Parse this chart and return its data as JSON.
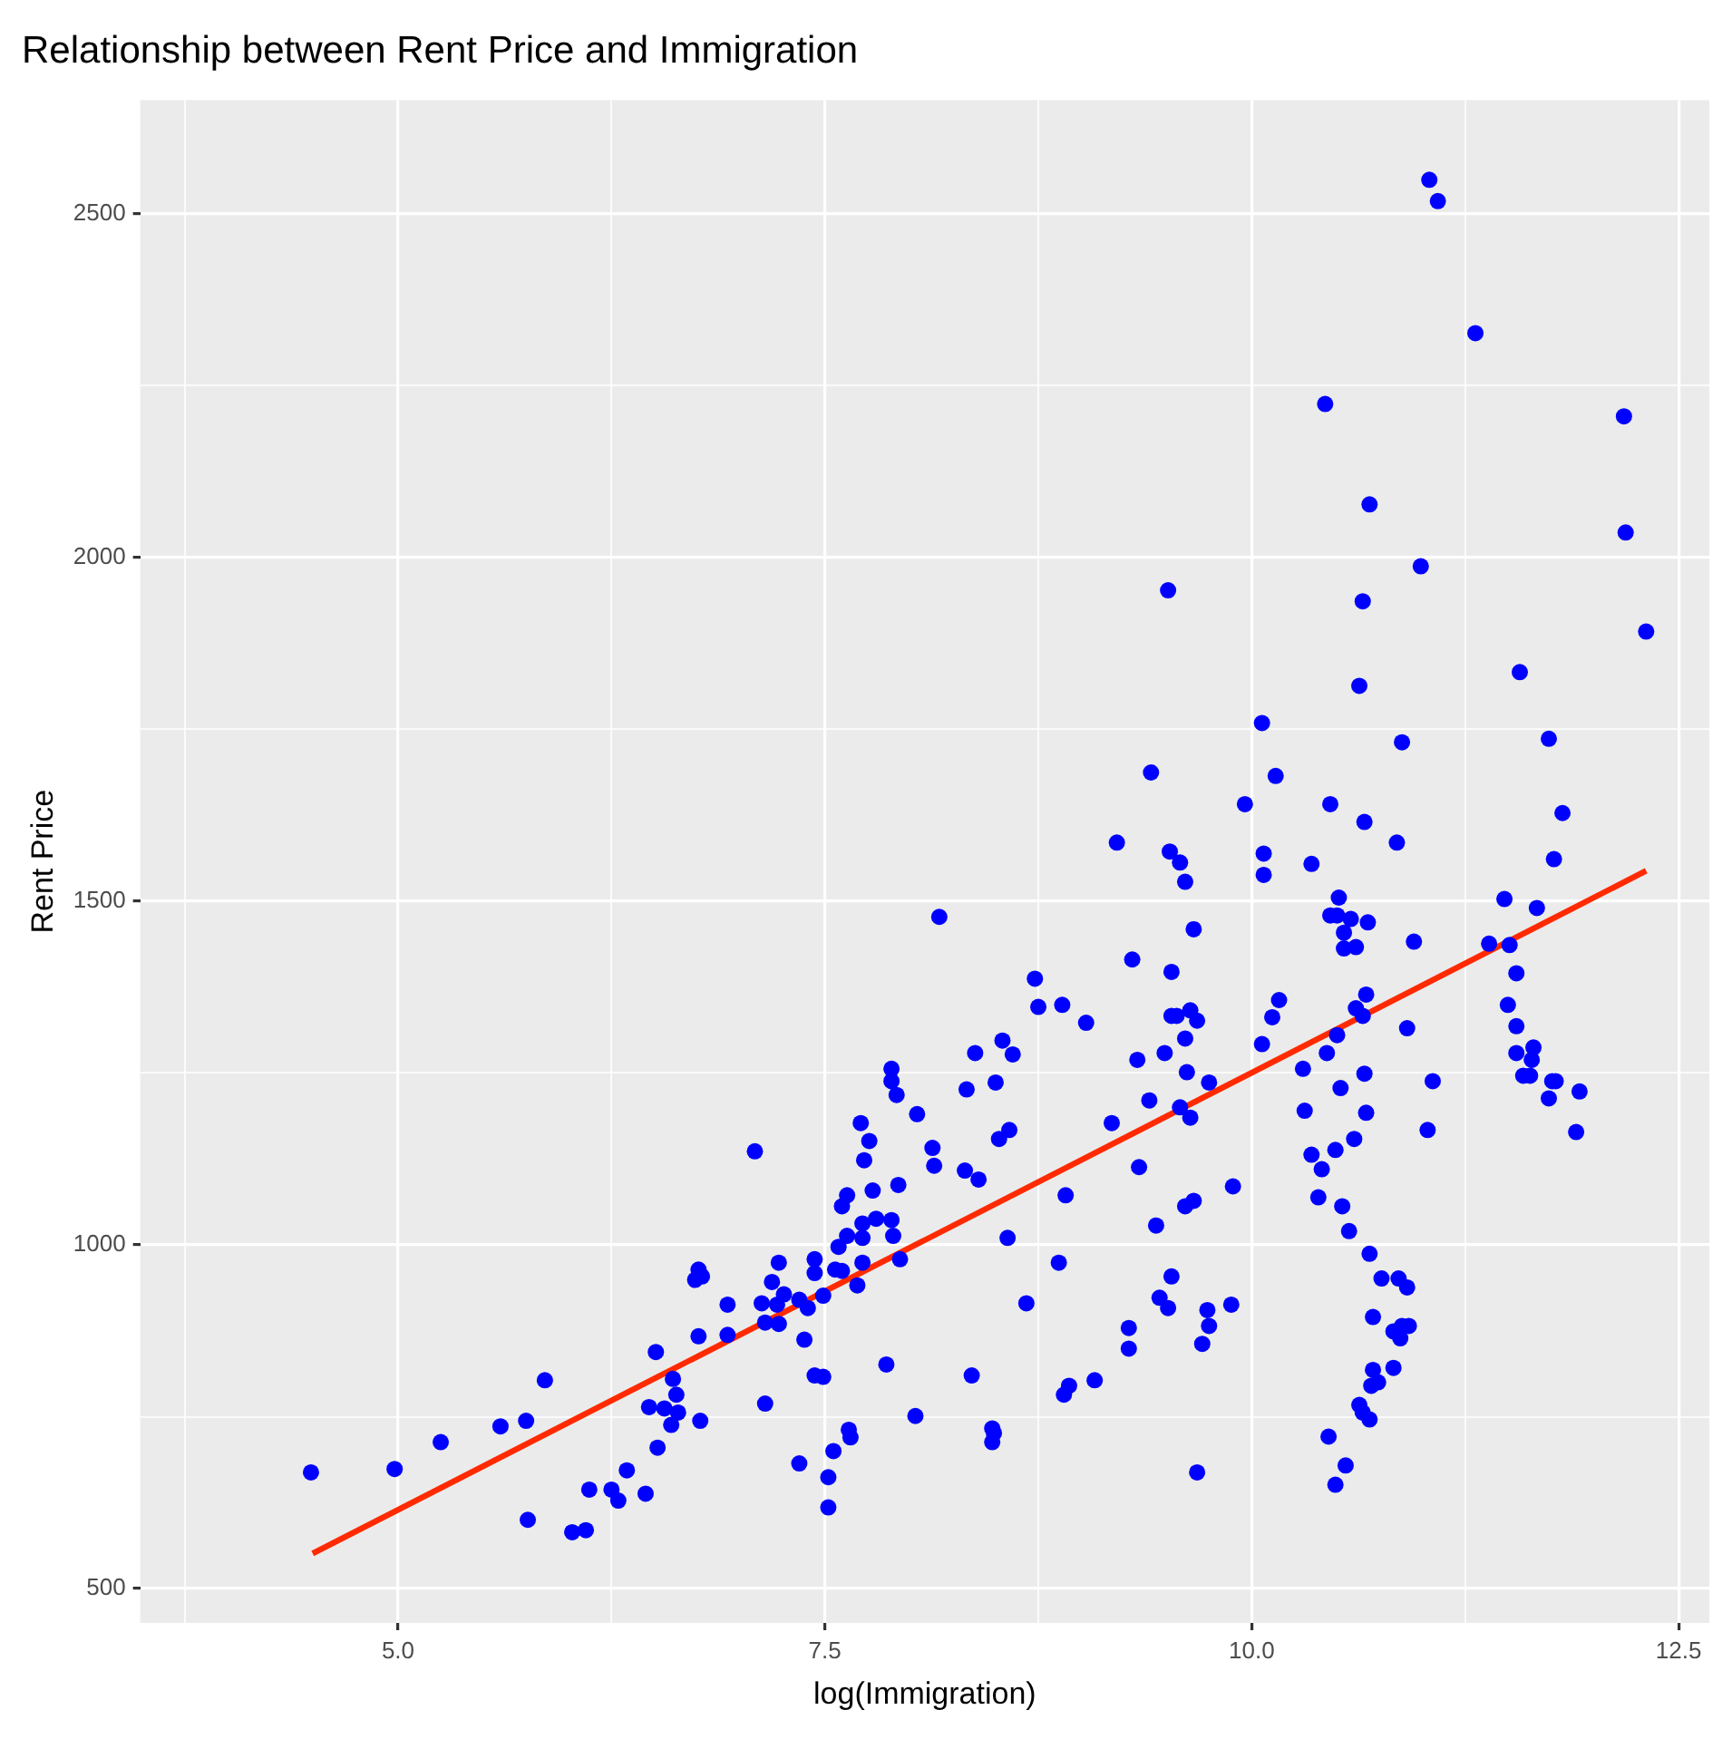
{
  "chart_data": {
    "type": "scatter",
    "title": "Relationship between Rent Price and Immigration",
    "xlabel": "log(Immigration)",
    "ylabel": "Rent Price",
    "xlim": [
      3.49,
      12.68
    ],
    "ylim": [
      450,
      2665
    ],
    "xticks": [
      {
        "value": 3.75,
        "label": null
      },
      {
        "value": 5,
        "label": "5.0"
      },
      {
        "value": 6.25,
        "label": null
      },
      {
        "value": 7.5,
        "label": "7.5"
      },
      {
        "value": 8.75,
        "label": null
      },
      {
        "value": 10,
        "label": "10.0"
      },
      {
        "value": 11.25,
        "label": null
      },
      {
        "value": 12.5,
        "label": "12.5"
      }
    ],
    "yticks": [
      500,
      {
        "value": 750,
        "label": null
      },
      1000,
      {
        "value": 1250,
        "label": null
      },
      1500,
      {
        "value": 1750,
        "label": null
      },
      2000,
      {
        "value": 2250,
        "label": null
      },
      2500
    ],
    "grid": true,
    "legend": false,
    "series": [
      {
        "marker": "circle",
        "color": "#0000ff",
        "x": [
          4.49,
          4.98,
          5.25,
          5.6,
          5.75,
          5.86,
          5.76,
          6.02,
          6.1,
          6.12,
          6.25,
          6.29,
          6.34,
          6.45,
          6.52,
          6.51,
          6.6,
          6.47,
          6.56,
          6.64,
          6.63,
          6.61,
          6.77,
          6.76,
          6.93,
          6.93,
          6.74,
          6.78,
          6.76,
          7.09,
          7.15,
          7.13,
          7.15,
          7.19,
          7.23,
          7.23,
          7.26,
          7.22,
          7.35,
          7.38,
          7.4,
          7.44,
          7.44,
          7.49,
          7.44,
          7.49,
          7.35,
          7.52,
          7.52,
          7.55,
          7.64,
          7.65,
          7.56,
          7.6,
          7.58,
          7.63,
          7.69,
          7.72,
          7.72,
          7.72,
          7.8,
          7.89,
          7.9,
          7.94,
          7.6,
          7.63,
          7.78,
          7.93,
          7.73,
          7.76,
          7.71,
          7.86,
          8.03,
          7.89,
          7.89,
          7.92,
          8.04,
          8.13,
          8.14,
          8.17,
          8.33,
          8.38,
          8.32,
          8.4,
          8.36,
          8.48,
          8.49,
          8.48,
          8.5,
          8.54,
          8.6,
          8.52,
          8.58,
          8.57,
          8.68,
          8.73,
          8.75,
          8.89,
          9.03,
          8.91,
          8.87,
          8.9,
          8.93,
          9.08,
          9.18,
          9.3,
          9.33,
          9.4,
          9.34,
          9.49,
          9.44,
          9.28,
          9.28,
          9.46,
          9.51,
          9.21,
          9.52,
          9.53,
          9.53,
          9.53,
          9.51,
          10.65,
          10.63,
          10.06,
          9.41,
          10.14,
          9.96,
          10.46,
          10.66,
          9.58,
          9.61,
          10.07,
          10.07,
          10.35,
          10.51,
          10.46,
          10.5,
          10.58,
          10.68,
          10.54,
          10.54,
          10.61,
          9.66,
          9.56,
          9.64,
          9.68,
          9.61,
          10.16,
          10.12,
          10.06,
          10.67,
          10.61,
          10.65,
          10.5,
          10.44,
          10.3,
          10.52,
          10.66,
          10.67,
          10.31,
          10.6,
          10.49,
          10.35,
          10.41,
          10.39,
          10.53,
          10.57,
          10.69,
          10.76,
          10.71,
          10.71,
          10.7,
          10.74,
          10.63,
          10.69,
          10.45,
          10.55,
          10.49,
          9.62,
          9.75,
          9.58,
          9.64,
          9.61,
          9.66,
          9.89,
          9.74,
          9.88,
          9.75,
          9.71,
          9.68,
          11.04,
          11.09,
          11.31,
          10.43,
          12.18,
          10.69,
          12.19,
          10.99,
          12.31,
          10.88,
          11.57,
          11.74,
          10.85,
          11.82,
          11.77,
          10.95,
          11.48,
          11.67,
          11.39,
          11.51,
          11.55,
          11.5,
          11.55,
          11.55,
          11.65,
          11.64,
          11.59,
          11.63,
          11.76,
          11.78,
          11.74,
          11.92,
          11.9,
          10.91,
          11.06,
          11.03,
          10.86,
          10.91,
          10.83,
          10.87,
          10.92,
          10.88,
          10.83,
          10.65
        ],
        "values": [
          669,
          674,
          713,
          736,
          744,
          803,
          600,
          582,
          585,
          644,
          644,
          628,
          672,
          638,
          705,
          844,
          738,
          764,
          762,
          756,
          782,
          805,
          744,
          867,
          869,
          913,
          949,
          954,
          964,
          1136,
          769,
          915,
          887,
          946,
          974,
          885,
          928,
          913,
          920,
          862,
          908,
          979,
          959,
          926,
          810,
          808,
          682,
          662,
          618,
          700,
          731,
          720,
          964,
          962,
          997,
          1013,
          941,
          974,
          1010,
          1031,
          1038,
          1036,
          1013,
          979,
          1056,
          1072,
          1079,
          1087,
          1123,
          1151,
          1177,
          826,
          751,
          1256,
          1238,
          1218,
          1190,
          1141,
          1115,
          1477,
          1226,
          1279,
          1108,
          1095,
          810,
          733,
          726,
          713,
          1236,
          1297,
          1277,
          1154,
          1167,
          1010,
          915,
          1387,
          1346,
          1349,
          1323,
          1072,
          974,
          782,
          795,
          803,
          1177,
          1415,
          1269,
          1210,
          1113,
          1279,
          1028,
          879,
          849,
          923,
          908,
          1585,
          1572,
          1333,
          1397,
          954,
          1952,
          1936,
          1813,
          1759,
          1687,
          1682,
          1641,
          1641,
          1615,
          1556,
          1528,
          1569,
          1538,
          1554,
          1505,
          1479,
          1479,
          1474,
          1469,
          1454,
          1431,
          1433,
          1459,
          1333,
          1341,
          1326,
          1300,
          1356,
          1331,
          1292,
          1364,
          1344,
          1333,
          1305,
          1279,
          1256,
          1228,
          1249,
          1192,
          1195,
          1154,
          1138,
          1131,
          1110,
          1069,
          1056,
          1020,
          987,
          951,
          895,
          818,
          795,
          800,
          767,
          746,
          721,
          679,
          651,
          1251,
          1236,
          1200,
          1185,
          1056,
          1064,
          1085,
          905,
          913,
          882,
          856,
          669,
          2549,
          2518,
          2326,
          2223,
          2205,
          2077,
          2036,
          1987,
          1892,
          1731,
          1833,
          1736,
          1585,
          1628,
          1561,
          1441,
          1503,
          1490,
          1438,
          1436,
          1395,
          1349,
          1318,
          1279,
          1287,
          1269,
          1246,
          1246,
          1238,
          1238,
          1213,
          1223,
          1164,
          1315,
          1238,
          1167,
          951,
          938,
          874,
          864,
          882,
          882,
          821,
          756
        ]
      },
      {
        "type": "line",
        "color": "#ff2a00",
        "x": [
          4.5,
          12.31
        ],
        "values": [
          551,
          1544
        ]
      }
    ]
  }
}
